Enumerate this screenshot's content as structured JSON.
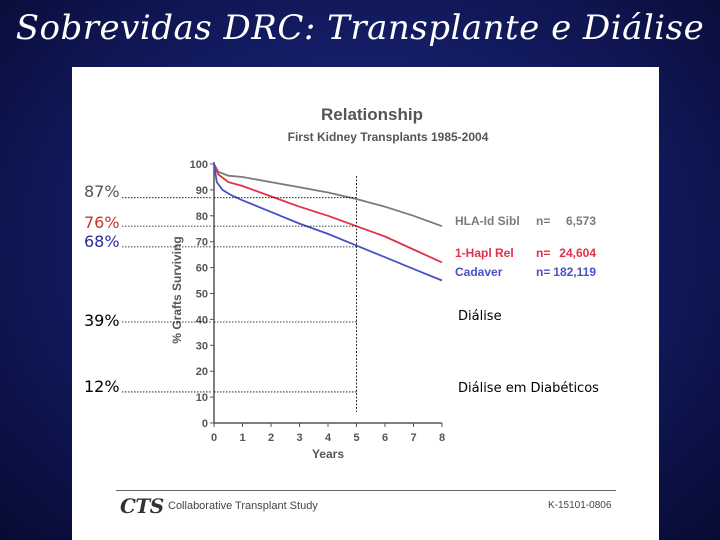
{
  "slide": {
    "title": "Sobrevidas DRC: Transplante e Diálise"
  },
  "annotations": [
    {
      "label": "87%",
      "value": 87,
      "color": "#555555"
    },
    {
      "label": "76%",
      "value": 76,
      "color": "#c0392b"
    },
    {
      "label": "68%",
      "value": 68,
      "color": "#2b2b9a"
    },
    {
      "label": "39%",
      "value": 39,
      "color": "#000000"
    },
    {
      "label": "12%",
      "value": 12,
      "color": "#000000"
    }
  ],
  "dialysis_labels": [
    {
      "label": "Diálise",
      "value": 39
    },
    {
      "label": "Diálise em Diabéticos",
      "value": 12
    }
  ],
  "chart_data": {
    "type": "line",
    "title": "Relationship",
    "subtitle": "First Kidney Transplants 1985-2004",
    "xlabel": "Years",
    "ylabel": "% Grafts Surviving",
    "xlim": [
      0,
      8
    ],
    "ylim": [
      0,
      100
    ],
    "x_ticks": [
      "0",
      "1",
      "2",
      "3",
      "4",
      "5",
      "6",
      "7",
      "8"
    ],
    "y_ticks": [
      "0",
      "10",
      "20",
      "30",
      "40",
      "50",
      "60",
      "70",
      "80",
      "90",
      "100"
    ],
    "grid": false,
    "legend_position": "right",
    "reference_year": 5,
    "series": [
      {
        "name": "HLA-Id Sibl",
        "n_label": "n=",
        "n_value": "6,573",
        "color": "#7a7a7a",
        "x": [
          0,
          0.15,
          0.5,
          1,
          2,
          3,
          4,
          5,
          6,
          7,
          8
        ],
        "y": [
          100,
          97,
          95.5,
          95,
          93,
          91,
          89,
          86.5,
          83.5,
          80,
          76
        ]
      },
      {
        "name": "1-Hapl Rel",
        "n_label": "n=",
        "n_value": "24,604",
        "color": "#e0314b",
        "x": [
          0,
          0.15,
          0.5,
          1,
          2,
          3,
          4,
          5,
          6,
          7,
          8
        ],
        "y": [
          100,
          96,
          93,
          91.5,
          87.5,
          83.5,
          80,
          76,
          72,
          67,
          62
        ]
      },
      {
        "name": "Cadaver",
        "n_label": "n=",
        "n_value": "182,119",
        "color": "#4a50c8",
        "x": [
          0,
          0.1,
          0.3,
          0.6,
          1,
          2,
          3,
          4,
          5,
          6,
          7,
          8
        ],
        "y": [
          100,
          93,
          90,
          88,
          86,
          81.5,
          77,
          73,
          68.5,
          64,
          59.5,
          55
        ]
      }
    ]
  },
  "footer": {
    "logo": "CTS",
    "name": "Collaborative Transplant Study",
    "code": "K-15101-0806"
  },
  "colors": {
    "background": "#121a5e",
    "panel": "#ffffff"
  }
}
